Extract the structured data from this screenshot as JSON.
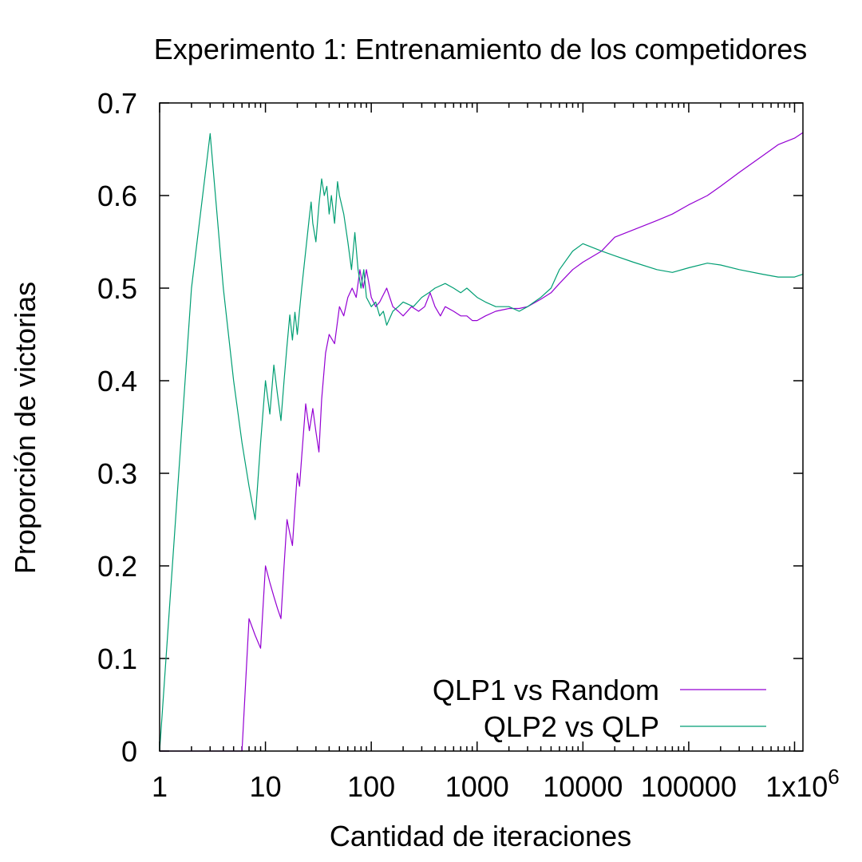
{
  "chart_data": {
    "type": "line",
    "title": "Experimento 1: Entrenamiento de los competidores",
    "xlabel": "Cantidad de iteraciones",
    "ylabel": "Proporción de victorias",
    "xscale": "log",
    "xlim": [
      1,
      1200000
    ],
    "ylim": [
      0,
      0.7
    ],
    "grid": false,
    "legend_position": "bottom-right",
    "xticks": [
      {
        "value": 1,
        "label": "1"
      },
      {
        "value": 10,
        "label": "10"
      },
      {
        "value": 100,
        "label": "100"
      },
      {
        "value": 1000,
        "label": "1000"
      },
      {
        "value": 10000,
        "label": "10000"
      },
      {
        "value": 100000,
        "label": "100000"
      },
      {
        "value": 1000000,
        "label": "1x10",
        "superscript": "6"
      }
    ],
    "yticks": [
      {
        "value": 0,
        "label": "0"
      },
      {
        "value": 0.1,
        "label": "0.1"
      },
      {
        "value": 0.2,
        "label": "0.2"
      },
      {
        "value": 0.3,
        "label": "0.3"
      },
      {
        "value": 0.4,
        "label": "0.4"
      },
      {
        "value": 0.5,
        "label": "0.5"
      },
      {
        "value": 0.6,
        "label": "0.6"
      },
      {
        "value": 0.7,
        "label": "0.7"
      }
    ],
    "series": [
      {
        "name": "QLP1 vs Random",
        "color": "#9400d3",
        "points": [
          [
            1,
            0
          ],
          [
            5,
            0
          ],
          [
            6,
            0
          ],
          [
            7,
            0.143
          ],
          [
            8,
            0.125
          ],
          [
            9,
            0.111
          ],
          [
            10,
            0.2
          ],
          [
            11,
            0.182
          ],
          [
            12,
            0.167
          ],
          [
            13,
            0.154
          ],
          [
            14,
            0.143
          ],
          [
            15,
            0.2
          ],
          [
            16,
            0.25
          ],
          [
            17,
            0.235
          ],
          [
            18,
            0.222
          ],
          [
            19,
            0.263
          ],
          [
            20,
            0.3
          ],
          [
            21,
            0.286
          ],
          [
            22,
            0.318
          ],
          [
            24,
            0.375
          ],
          [
            26,
            0.346
          ],
          [
            28,
            0.37
          ],
          [
            30,
            0.345
          ],
          [
            32,
            0.323
          ],
          [
            34,
            0.38
          ],
          [
            37,
            0.43
          ],
          [
            40,
            0.45
          ],
          [
            45,
            0.44
          ],
          [
            50,
            0.48
          ],
          [
            55,
            0.47
          ],
          [
            60,
            0.49
          ],
          [
            66,
            0.5
          ],
          [
            72,
            0.49
          ],
          [
            78,
            0.52
          ],
          [
            84,
            0.5
          ],
          [
            90,
            0.52
          ],
          [
            95,
            0.505
          ],
          [
            100,
            0.49
          ],
          [
            110,
            0.48
          ],
          [
            120,
            0.485
          ],
          [
            140,
            0.5
          ],
          [
            160,
            0.48
          ],
          [
            180,
            0.475
          ],
          [
            200,
            0.47
          ],
          [
            240,
            0.48
          ],
          [
            280,
            0.475
          ],
          [
            320,
            0.48
          ],
          [
            360,
            0.495
          ],
          [
            400,
            0.48
          ],
          [
            450,
            0.47
          ],
          [
            500,
            0.48
          ],
          [
            600,
            0.475
          ],
          [
            700,
            0.47
          ],
          [
            800,
            0.47
          ],
          [
            900,
            0.465
          ],
          [
            1000,
            0.465
          ],
          [
            1200,
            0.47
          ],
          [
            1500,
            0.475
          ],
          [
            2000,
            0.478
          ],
          [
            2500,
            0.478
          ],
          [
            3000,
            0.48
          ],
          [
            4000,
            0.488
          ],
          [
            5000,
            0.495
          ],
          [
            6000,
            0.505
          ],
          [
            8000,
            0.52
          ],
          [
            10000,
            0.528
          ],
          [
            15000,
            0.54
          ],
          [
            20000,
            0.555
          ],
          [
            30000,
            0.563
          ],
          [
            50000,
            0.573
          ],
          [
            70000,
            0.58
          ],
          [
            100000,
            0.59
          ],
          [
            150000,
            0.6
          ],
          [
            200000,
            0.61
          ],
          [
            300000,
            0.625
          ],
          [
            500000,
            0.643
          ],
          [
            700000,
            0.655
          ],
          [
            1000000,
            0.662
          ],
          [
            1200000,
            0.668
          ]
        ]
      },
      {
        "name": "QLP2 vs QLP",
        "color": "#009e73",
        "points": [
          [
            1,
            0
          ],
          [
            2,
            0.5
          ],
          [
            3,
            0.667
          ],
          [
            4,
            0.5
          ],
          [
            5,
            0.4
          ],
          [
            6,
            0.333
          ],
          [
            7,
            0.286
          ],
          [
            8,
            0.25
          ],
          [
            9,
            0.333
          ],
          [
            10,
            0.4
          ],
          [
            11,
            0.364
          ],
          [
            12,
            0.417
          ],
          [
            13,
            0.385
          ],
          [
            14,
            0.357
          ],
          [
            15,
            0.4
          ],
          [
            16,
            0.438
          ],
          [
            17,
            0.471
          ],
          [
            18,
            0.444
          ],
          [
            19,
            0.474
          ],
          [
            20,
            0.45
          ],
          [
            21,
            0.476
          ],
          [
            22,
            0.5
          ],
          [
            24,
            0.54
          ],
          [
            26,
            0.577
          ],
          [
            27,
            0.593
          ],
          [
            28,
            0.57
          ],
          [
            30,
            0.55
          ],
          [
            32,
            0.59
          ],
          [
            34,
            0.618
          ],
          [
            36,
            0.6
          ],
          [
            38,
            0.61
          ],
          [
            40,
            0.58
          ],
          [
            42,
            0.6
          ],
          [
            45,
            0.57
          ],
          [
            48,
            0.615
          ],
          [
            50,
            0.6
          ],
          [
            55,
            0.58
          ],
          [
            60,
            0.55
          ],
          [
            65,
            0.52
          ],
          [
            70,
            0.56
          ],
          [
            75,
            0.52
          ],
          [
            80,
            0.5
          ],
          [
            85,
            0.52
          ],
          [
            90,
            0.49
          ],
          [
            100,
            0.48
          ],
          [
            110,
            0.485
          ],
          [
            120,
            0.47
          ],
          [
            130,
            0.475
          ],
          [
            140,
            0.46
          ],
          [
            160,
            0.475
          ],
          [
            180,
            0.48
          ],
          [
            200,
            0.485
          ],
          [
            250,
            0.48
          ],
          [
            300,
            0.49
          ],
          [
            350,
            0.495
          ],
          [
            400,
            0.5
          ],
          [
            500,
            0.505
          ],
          [
            600,
            0.5
          ],
          [
            700,
            0.495
          ],
          [
            800,
            0.5
          ],
          [
            1000,
            0.49
          ],
          [
            1200,
            0.485
          ],
          [
            1500,
            0.48
          ],
          [
            2000,
            0.48
          ],
          [
            2500,
            0.475
          ],
          [
            3000,
            0.48
          ],
          [
            4000,
            0.49
          ],
          [
            5000,
            0.5
          ],
          [
            6000,
            0.52
          ],
          [
            8000,
            0.54
          ],
          [
            10000,
            0.548
          ],
          [
            15000,
            0.54
          ],
          [
            20000,
            0.535
          ],
          [
            30000,
            0.528
          ],
          [
            50000,
            0.52
          ],
          [
            70000,
            0.517
          ],
          [
            100000,
            0.522
          ],
          [
            150000,
            0.527
          ],
          [
            200000,
            0.525
          ],
          [
            300000,
            0.52
          ],
          [
            500000,
            0.515
          ],
          [
            700000,
            0.512
          ],
          [
            1000000,
            0.512
          ],
          [
            1200000,
            0.515
          ]
        ]
      }
    ]
  }
}
